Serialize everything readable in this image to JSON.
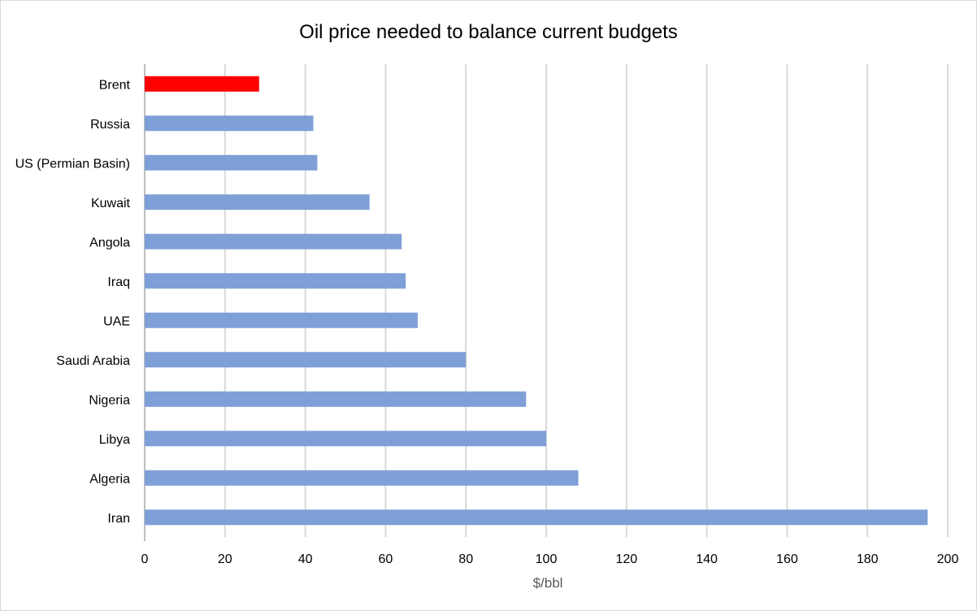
{
  "chart_data": {
    "type": "bar",
    "orientation": "horizontal",
    "title": "Oil price needed to balance current budgets",
    "xlabel": "$/bbl",
    "ylabel": "",
    "xlim": [
      0,
      200
    ],
    "x_ticks": [
      0,
      20,
      40,
      60,
      80,
      100,
      120,
      140,
      160,
      180,
      200
    ],
    "grid": "vertical",
    "legend": "none",
    "categories": [
      "Brent",
      "Russia",
      "US (Permian Basin)",
      "Kuwait",
      "Angola",
      "Iraq",
      "UAE",
      "Saudi Arabia",
      "Nigeria",
      "Libya",
      "Algeria",
      "Iran"
    ],
    "values": [
      28.5,
      42,
      43,
      56,
      64,
      65,
      68,
      80,
      95,
      100,
      108,
      195
    ],
    "highlight_category": "Brent",
    "colors": {
      "bar": "#7f9fd7",
      "highlight": "#ff0000",
      "grid": "#d9d9d9",
      "axis": "#bfbfbf"
    }
  }
}
